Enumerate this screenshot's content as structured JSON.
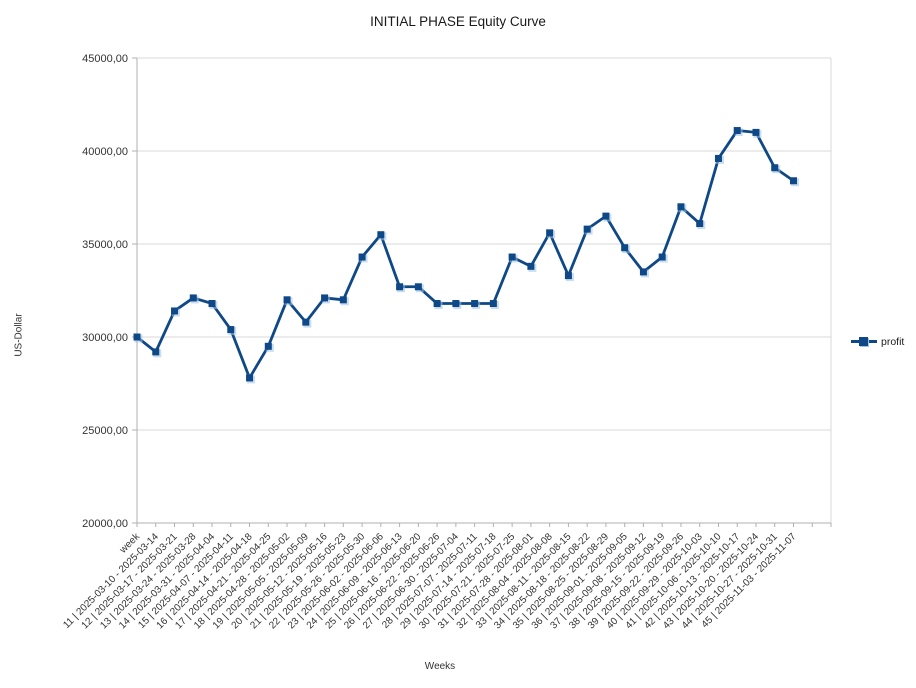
{
  "chart": {
    "title": "INITIAL PHASE Equity Curve",
    "ylabel": "US-Dollar",
    "xlabel": "Weeks",
    "legend_label": "profit"
  },
  "colors": {
    "series": "#0F4886",
    "marker_halo": "#9DC3E6",
    "grid": "#D9D9D9",
    "axis": "#B0B0B0",
    "text": "#333333",
    "background": "#FFFFFF"
  },
  "chart_data": {
    "type": "line",
    "title": "INITIAL PHASE Equity Curve",
    "xlabel": "Weeks",
    "ylabel": "US-Dollar",
    "grid": true,
    "legend_position": "right",
    "legend": [
      "profit"
    ],
    "ylim": [
      20000,
      45000
    ],
    "ytick_step": 5000,
    "ytick_labels": [
      "20000,00",
      "25000,00",
      "30000,00",
      "35000,00",
      "40000,00",
      "45000,00"
    ],
    "categories": [
      "week",
      "11 | 2025-03-10 - 2025-03-14",
      "12 | 2025-03-17 - 2025-03-21",
      "13 | 2025-03-24 - 2025-03-28",
      "14 | 2025-03-31 - 2025-04-04",
      "15 | 2025-04-07 - 2025-04-11",
      "16 | 2025-04-14 - 2025-04-18",
      "17 | 2025-04-21 - 2025-04-25",
      "18 | 2025-04-28 - 2025-05-02",
      "19 | 2025-05-05 - 2025-05-09",
      "20 | 2025-05-12 - 2025-05-16",
      "21 | 2025-05-19 - 2025-05-23",
      "22 | 2025-05-26 - 2025-05-30",
      "23 | 2025-06-02 - 2025-06-06",
      "24 | 2025-06-09 - 2025-06-13",
      "25 | 2025-06-16 - 2025-06-20",
      "26 | 2025-06-22 - 2025-06-26",
      "27 | 2025-06-30 - 2025-07-04",
      "28 | 2025-07-07 - 2025-07-11",
      "29 | 2025-07-14 - 2025-07-18",
      "30 | 2025-07-21 - 2025-07-25",
      "31 | 2025-07-28 - 2025-08-01",
      "32 | 2025-08-04 - 2025-08-08",
      "33 | 2025-08-11 - 2025-08-15",
      "34 | 2025-08-18 - 2025-08-22",
      "35 | 2025-08-25 - 2025-08-29",
      "36 | 2025-09-01 - 2025-09-05",
      "37 | 2025-09-08 - 2025-09-12",
      "38 | 2025-09-15 - 2025-09-19",
      "39 | 2025-09-22 - 2025-09-26",
      "40 | 2025-09-29 - 2025-10-03",
      "41 | 2025-10-06 - 2025-10-10",
      "42 | 2025-10-13 - 2025-10-17",
      "43 | 2025-10-20 - 2025-10-24",
      "44 | 2025-10-27 - 2025-10-31",
      "45 | 2025-11-03 - 2025-11-07"
    ],
    "series": [
      {
        "name": "profit",
        "color": "#0F4886",
        "marker": "square",
        "values": [
          30000,
          29200,
          31400,
          32100,
          31800,
          30400,
          27800,
          29500,
          32000,
          30800,
          32100,
          32000,
          34300,
          35500,
          32700,
          32700,
          31800,
          31800,
          31800,
          31800,
          34300,
          33800,
          35600,
          33300,
          35800,
          36500,
          34800,
          33500,
          34300,
          37000,
          36100,
          39600,
          41100,
          41000,
          39100,
          38400
        ]
      }
    ]
  }
}
